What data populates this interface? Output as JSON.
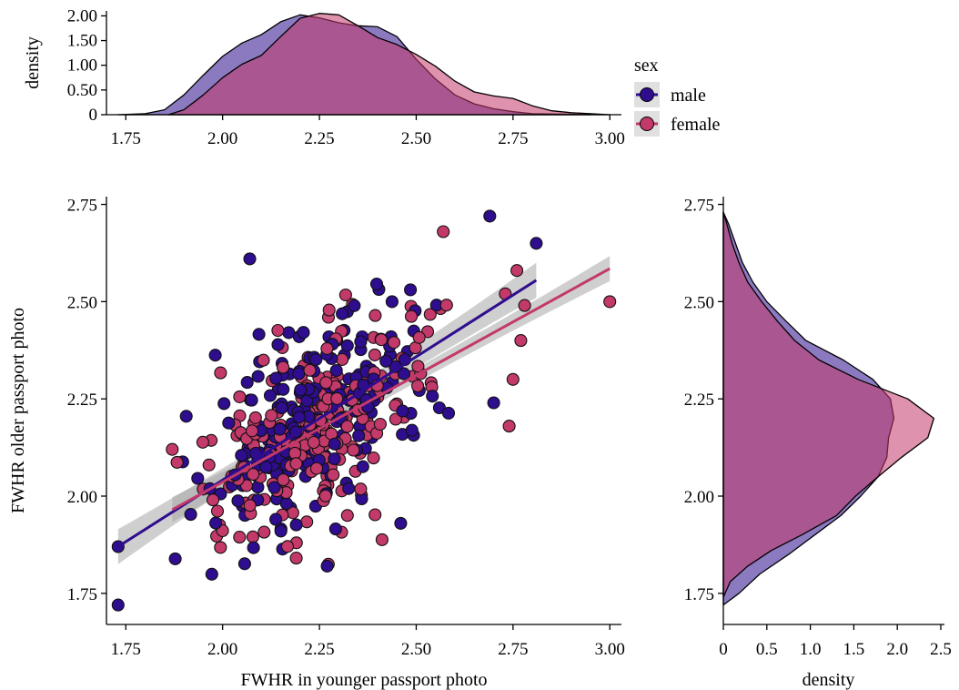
{
  "chart_data": {
    "type": "scatter",
    "colors": {
      "male": "#2e0d8e",
      "female": "#c2396a",
      "band": "#a8a8a8"
    },
    "legend": {
      "title": "sex",
      "placement": "top-right",
      "entries": [
        "male",
        "female"
      ]
    },
    "main": {
      "xlabel": "FWHR in younger passport photo",
      "ylabel": "FWHR older passport photo",
      "xlim": [
        1.7,
        3.03
      ],
      "ylim": [
        1.67,
        2.77
      ],
      "xticks": [
        "1.75",
        "2.00",
        "2.25",
        "2.50",
        "2.75",
        "3.00"
      ],
      "yticks": [
        "1.75",
        "2.00",
        "2.25",
        "2.50",
        "2.75"
      ],
      "regression": {
        "male": {
          "x": [
            1.73,
            2.81
          ],
          "y": [
            1.87,
            2.555
          ]
        },
        "female": {
          "x": [
            1.87,
            3.0
          ],
          "y": [
            1.965,
            2.585
          ]
        }
      }
    },
    "top_density": {
      "ylabel": "density",
      "yticks": [
        "0",
        "0.50",
        "1.00",
        "1.50",
        "2.00"
      ],
      "ylim": [
        0,
        2.1
      ],
      "xticks": [
        "1.75",
        "2.00",
        "2.25",
        "2.50",
        "2.75",
        "3.00"
      ],
      "male": {
        "x": [
          1.73,
          1.8,
          1.85,
          1.9,
          1.95,
          2.0,
          2.05,
          2.1,
          2.15,
          2.2,
          2.25,
          2.3,
          2.35,
          2.4,
          2.45,
          2.5,
          2.55,
          2.6,
          2.65,
          2.7,
          2.75,
          2.8,
          2.9,
          2.95
        ],
        "y": [
          0.0,
          0.02,
          0.1,
          0.4,
          0.8,
          1.18,
          1.45,
          1.62,
          1.88,
          2.02,
          1.96,
          1.86,
          1.8,
          1.78,
          1.58,
          1.12,
          0.72,
          0.4,
          0.22,
          0.12,
          0.06,
          0.02,
          0.01,
          0.0
        ]
      },
      "female": {
        "x": [
          1.86,
          1.9,
          1.95,
          2.0,
          2.05,
          2.1,
          2.15,
          2.2,
          2.25,
          2.3,
          2.35,
          2.4,
          2.45,
          2.5,
          2.55,
          2.6,
          2.65,
          2.7,
          2.75,
          2.8,
          2.85,
          2.9,
          2.95,
          3.0
        ],
        "y": [
          0.0,
          0.1,
          0.4,
          0.75,
          1.02,
          1.2,
          1.58,
          1.95,
          2.05,
          2.02,
          1.8,
          1.56,
          1.42,
          1.22,
          0.98,
          0.68,
          0.46,
          0.38,
          0.33,
          0.18,
          0.08,
          0.04,
          0.02,
          0.0
        ]
      }
    },
    "right_density": {
      "xlabel": "density",
      "xticks": [
        "0",
        "0.5",
        "1.0",
        "1.5",
        "2.0",
        "2.5"
      ],
      "xlim": [
        0,
        2.5
      ],
      "ylim": [
        1.67,
        2.77
      ],
      "yticks": [
        "1.75",
        "2.00",
        "2.25",
        "2.50",
        "2.75"
      ],
      "male": {
        "y": [
          1.72,
          1.75,
          1.8,
          1.85,
          1.9,
          1.95,
          2.0,
          2.05,
          2.1,
          2.15,
          2.2,
          2.25,
          2.3,
          2.35,
          2.4,
          2.45,
          2.5,
          2.55,
          2.6,
          2.65,
          2.7,
          2.73
        ],
        "d": [
          0.0,
          0.18,
          0.42,
          0.75,
          1.05,
          1.35,
          1.58,
          1.78,
          1.88,
          1.9,
          1.96,
          1.92,
          1.72,
          1.38,
          0.95,
          0.72,
          0.5,
          0.34,
          0.22,
          0.14,
          0.06,
          0.0
        ]
      },
      "female": {
        "y": [
          1.74,
          1.78,
          1.82,
          1.86,
          1.9,
          1.95,
          2.0,
          2.05,
          2.1,
          2.15,
          2.2,
          2.25,
          2.3,
          2.35,
          2.4,
          2.45,
          2.5,
          2.55,
          2.6,
          2.65,
          2.7,
          2.73
        ],
        "d": [
          0.0,
          0.08,
          0.28,
          0.55,
          0.9,
          1.3,
          1.52,
          1.78,
          2.05,
          2.35,
          2.42,
          2.12,
          1.55,
          1.1,
          0.82,
          0.62,
          0.44,
          0.28,
          0.18,
          0.1,
          0.04,
          0.0
        ]
      }
    }
  }
}
